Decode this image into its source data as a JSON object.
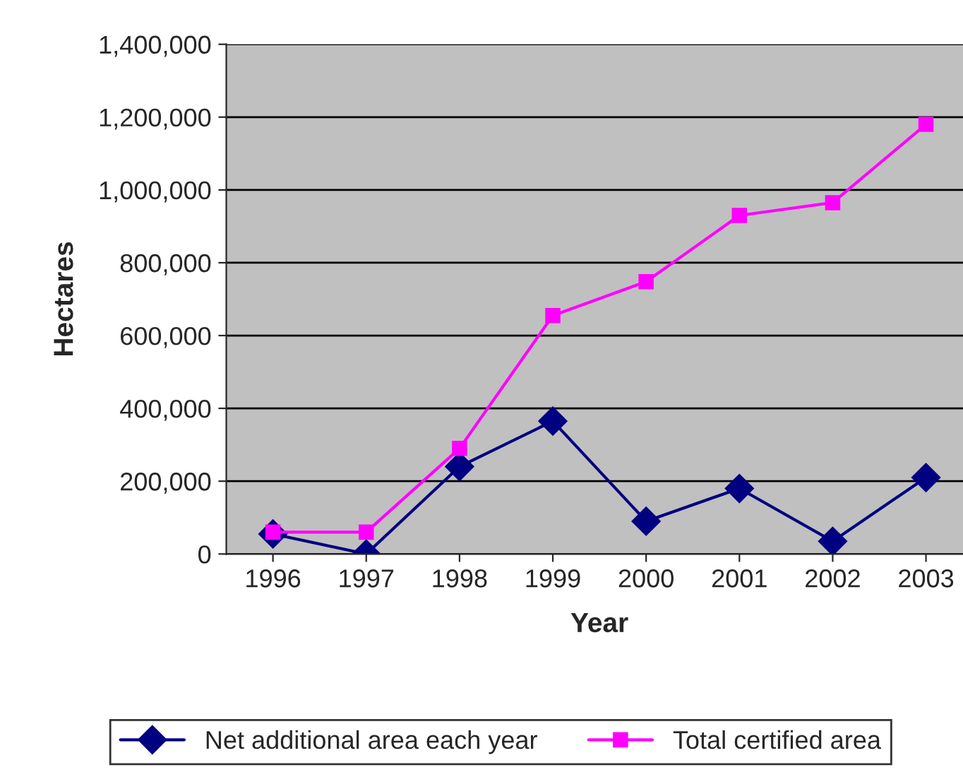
{
  "chart_data": {
    "type": "line",
    "xlabel": "Year",
    "ylabel": "Hectares",
    "categories": [
      "1996",
      "1997",
      "1998",
      "1999",
      "2000",
      "2001",
      "2002",
      "2003"
    ],
    "series": [
      {
        "name": "Net additional area each year",
        "color": "#000080",
        "marker": "diamond",
        "values": [
          55000,
          0,
          240000,
          365000,
          90000,
          180000,
          35000,
          210000
        ]
      },
      {
        "name": "Total certified area",
        "color": "#ff00ff",
        "marker": "square",
        "values": [
          60000,
          60000,
          290000,
          655000,
          748000,
          930000,
          965000,
          1180000
        ]
      }
    ],
    "ylim": [
      0,
      1400000
    ],
    "yticks": [
      {
        "value": 0,
        "label": "0"
      },
      {
        "value": 200000,
        "label": "200,000"
      },
      {
        "value": 400000,
        "label": "400,000"
      },
      {
        "value": 600000,
        "label": "600,000"
      },
      {
        "value": 800000,
        "label": "800,000"
      },
      {
        "value": 1000000,
        "label": "1,000,000"
      },
      {
        "value": 1200000,
        "label": "1,200,000"
      },
      {
        "value": 1400000,
        "label": "1,400,000"
      }
    ],
    "grid": "y",
    "legend": "bottom",
    "line_style": "solid"
  }
}
